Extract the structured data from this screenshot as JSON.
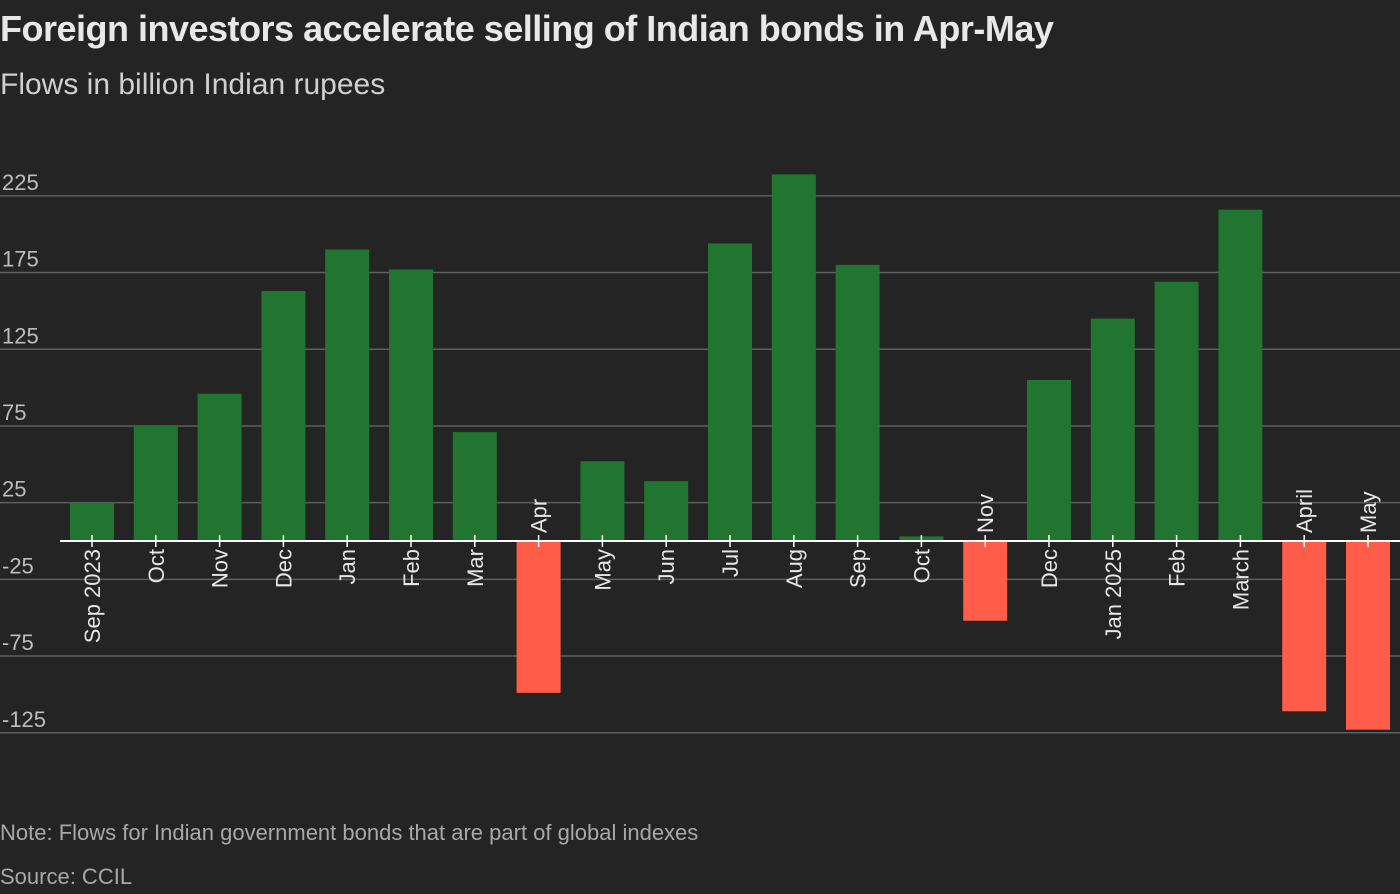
{
  "chart_data": {
    "type": "bar",
    "title": "Foreign investors accelerate selling of Indian bonds in Apr-May",
    "subtitle": "Flows in billion Indian rupees",
    "note": "Note: Flows for Indian government bonds that are part of global indexes",
    "source": "Source: CCIL",
    "categories": [
      "Sep 2023",
      "Oct",
      "Nov",
      "Dec",
      "Jan",
      "Feb",
      "Mar",
      "Apr",
      "May",
      "Jun",
      "Jul",
      "Aug",
      "Sep",
      "Oct",
      "Nov",
      "Dec",
      "Jan 2025",
      "Feb",
      "March",
      "April",
      "May"
    ],
    "values": [
      25,
      75,
      96,
      163,
      190,
      177,
      71,
      -99,
      52,
      39,
      194,
      239,
      180,
      3,
      -52,
      105,
      145,
      169,
      216,
      -111,
      -123
    ],
    "yticks": [
      225,
      175,
      125,
      75,
      25,
      -25,
      -75,
      -125
    ],
    "ylim": [
      -140,
      255
    ],
    "grid": true,
    "colors": {
      "positive": "#217530",
      "negative": "#ff5c4a",
      "background": "#242424",
      "grid": "#5e5e5e"
    }
  }
}
